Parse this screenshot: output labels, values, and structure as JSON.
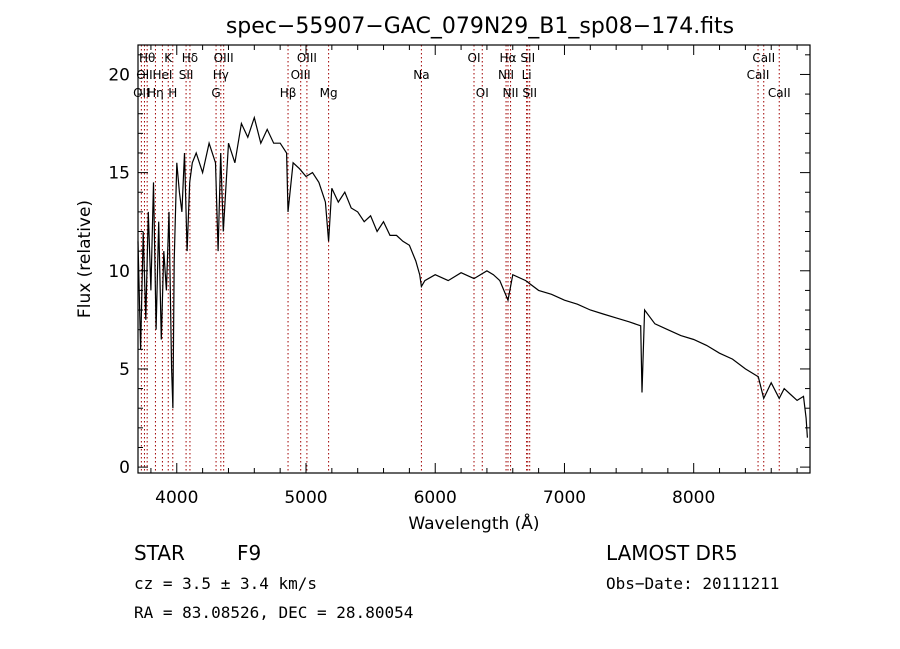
{
  "chart_data": {
    "type": "line",
    "title": "spec−55907−GAC_079N29_B1_sp08−174.fits",
    "xlabel": "Wavelength (Å)",
    "ylabel": "Flux (relative)",
    "xlim": [
      3700,
      8900
    ],
    "ylim": [
      -0.3,
      21.5
    ],
    "xticks": [
      4000,
      5000,
      6000,
      7000,
      8000
    ],
    "yticks": [
      0,
      5,
      10,
      15,
      20
    ],
    "grid": false,
    "series": [
      {
        "x": [
          3700,
          3720,
          3740,
          3760,
          3780,
          3800,
          3820,
          3840,
          3860,
          3880,
          3900,
          3920,
          3940,
          3960,
          3970,
          3980,
          4000,
          4020,
          4040,
          4060,
          4080,
          4100,
          4120,
          4150,
          4200,
          4250,
          4300,
          4320,
          4340,
          4360,
          4400,
          4450,
          4500,
          4550,
          4600,
          4650,
          4700,
          4750,
          4800,
          4850,
          4861,
          4900,
          4950,
          5000,
          5050,
          5100,
          5150,
          5175,
          5200,
          5250,
          5300,
          5350,
          5400,
          5450,
          5500,
          5550,
          5600,
          5650,
          5700,
          5750,
          5800,
          5850,
          5880,
          5893,
          5920,
          6000,
          6100,
          6200,
          6300,
          6400,
          6450,
          6500,
          6563,
          6600,
          6700,
          6800,
          6900,
          7000,
          7100,
          7200,
          7300,
          7400,
          7500,
          7590,
          7600,
          7620,
          7700,
          7800,
          7900,
          8000,
          8100,
          8200,
          8300,
          8400,
          8500,
          8542,
          8600,
          8662,
          8700,
          8750,
          8800,
          8850,
          8870,
          8880
        ],
        "y": [
          11.5,
          6.0,
          12.0,
          7.5,
          13.0,
          9.0,
          14.5,
          7.0,
          12.5,
          6.5,
          11.0,
          9.0,
          13.0,
          5.0,
          3.0,
          10.5,
          15.5,
          14.0,
          13.0,
          16.0,
          11.0,
          14.5,
          15.5,
          16.0,
          15.0,
          16.5,
          15.5,
          11.0,
          16.0,
          12.0,
          16.5,
          15.5,
          17.5,
          16.8,
          17.8,
          16.5,
          17.2,
          16.5,
          16.5,
          16.0,
          13.0,
          15.5,
          15.2,
          14.8,
          15.0,
          14.5,
          13.5,
          11.5,
          14.2,
          13.5,
          14.0,
          13.2,
          13.0,
          12.5,
          12.8,
          12.0,
          12.5,
          11.8,
          11.8,
          11.5,
          11.3,
          10.5,
          9.8,
          9.2,
          9.5,
          9.8,
          9.5,
          9.9,
          9.6,
          10.0,
          9.8,
          9.5,
          8.5,
          9.8,
          9.5,
          9.0,
          8.8,
          8.5,
          8.3,
          8.0,
          7.8,
          7.6,
          7.4,
          7.2,
          3.8,
          8.0,
          7.3,
          7.0,
          6.7,
          6.5,
          6.2,
          5.8,
          5.5,
          5.0,
          4.6,
          3.5,
          4.3,
          3.5,
          4.0,
          3.7,
          3.4,
          3.6,
          2.5,
          1.5
        ]
      }
    ],
    "spectral_lines": [
      {
        "wl": 3726,
        "label": "OII",
        "row": 2
      },
      {
        "wl": 3750,
        "label": "OII",
        "row": 1
      },
      {
        "wl": 3771,
        "label": "Hθ",
        "row": 0
      },
      {
        "wl": 3835,
        "label": "Hη",
        "row": 2
      },
      {
        "wl": 3889,
        "label": "HeI",
        "row": 1
      },
      {
        "wl": 3934,
        "label": "K",
        "row": 0
      },
      {
        "wl": 3969,
        "label": "H",
        "row": 2
      },
      {
        "wl": 4072,
        "label": "SII",
        "row": 1
      },
      {
        "wl": 4102,
        "label": "Hδ",
        "row": 0
      },
      {
        "wl": 4304,
        "label": "G",
        "row": 2
      },
      {
        "wl": 4341,
        "label": "Hγ",
        "row": 1
      },
      {
        "wl": 4363,
        "label": "OIII",
        "row": 0
      },
      {
        "wl": 4861,
        "label": "Hβ",
        "row": 2
      },
      {
        "wl": 4959,
        "label": "OIII",
        "row": 1
      },
      {
        "wl": 5007,
        "label": "OIII",
        "row": 0
      },
      {
        "wl": 5175,
        "label": "Mg",
        "row": 2
      },
      {
        "wl": 5893,
        "label": "Na",
        "row": 1
      },
      {
        "wl": 6300,
        "label": "OI",
        "row": 0
      },
      {
        "wl": 6364,
        "label": "OI",
        "row": 2
      },
      {
        "wl": 6548,
        "label": "NII",
        "row": 1
      },
      {
        "wl": 6563,
        "label": "Hα",
        "row": 0
      },
      {
        "wl": 6583,
        "label": "NII",
        "row": 2
      },
      {
        "wl": 6707,
        "label": "Li",
        "row": 1
      },
      {
        "wl": 6716,
        "label": "SII",
        "row": 0
      },
      {
        "wl": 6731,
        "label": "SII",
        "row": 2
      },
      {
        "wl": 8498,
        "label": "CaII",
        "row": 1
      },
      {
        "wl": 8542,
        "label": "CaII",
        "row": 0
      },
      {
        "wl": 8662,
        "label": "CaII",
        "row": 2
      }
    ]
  },
  "info": {
    "class_label": "STAR",
    "subclass": "F9",
    "survey": "LAMOST DR5",
    "cz": "cz = 3.5 ± 3.4 km/s",
    "obs_date": "Obs−Date: 20111211",
    "coords": "RA =  83.08526, DEC =  28.80054"
  }
}
